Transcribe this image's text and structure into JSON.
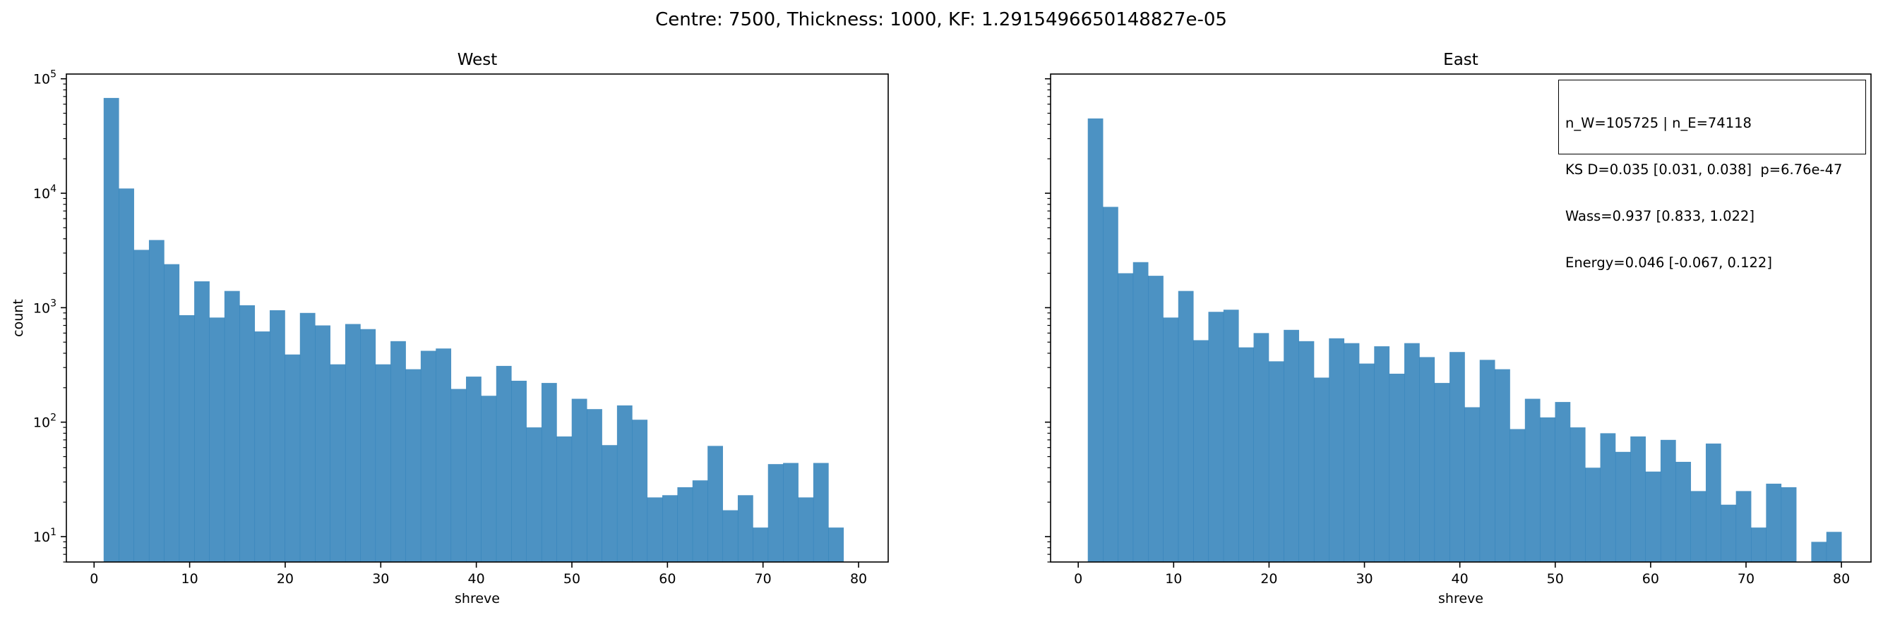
{
  "suptitle": "Centre: 7500, Thickness: 1000, KF: 1.2915496650148827e-05",
  "bar_color": "#1f77b4",
  "chart_data": [
    {
      "type": "bar",
      "title": "West",
      "xlabel": "shreve",
      "ylabel": "count",
      "yscale": "log",
      "xlim": [
        -2.9,
        83.1
      ],
      "ylim": [
        6,
        110000
      ],
      "xticks": [
        0,
        10,
        20,
        30,
        40,
        50,
        60,
        70,
        80
      ],
      "yticks": [
        10,
        100,
        1000,
        10000,
        100000
      ],
      "bin_start": 1,
      "bin_width": 1.58,
      "values": [
        68000,
        11000,
        3200,
        3900,
        2400,
        860,
        1700,
        820,
        1400,
        1050,
        620,
        950,
        390,
        900,
        700,
        320,
        720,
        650,
        320,
        510,
        290,
        420,
        440,
        195,
        250,
        170,
        310,
        230,
        90,
        220,
        75,
        160,
        130,
        63,
        140,
        105,
        22,
        23,
        27,
        31,
        62,
        17,
        23,
        12,
        43,
        44,
        22,
        44,
        12,
        0
      ]
    },
    {
      "type": "bar",
      "title": "East",
      "xlabel": "shreve",
      "ylabel": "",
      "yscale": "log",
      "xlim": [
        -2.9,
        83.1
      ],
      "ylim": [
        6,
        110000
      ],
      "xticks": [
        0,
        10,
        20,
        30,
        40,
        50,
        60,
        70,
        80
      ],
      "yticks": [
        10,
        100,
        1000,
        10000,
        100000
      ],
      "bin_start": 1,
      "bin_width": 1.58,
      "values": [
        45000,
        7600,
        2000,
        2500,
        1900,
        820,
        1400,
        520,
        920,
        960,
        450,
        600,
        340,
        640,
        510,
        245,
        540,
        490,
        325,
        460,
        265,
        490,
        370,
        220,
        410,
        135,
        350,
        290,
        87,
        160,
        110,
        150,
        90,
        40,
        80,
        55,
        75,
        37,
        70,
        45,
        25,
        65,
        19,
        25,
        12,
        29,
        27,
        0,
        9,
        11
      ]
    }
  ],
  "stats_box": {
    "lines": [
      "n_W=105725 | n_E=74118",
      "KS D=0.035 [0.031, 0.038]  p=6.76e-47",
      "Wass=0.937 [0.833, 1.022]",
      "Energy=0.046 [-0.067, 0.122]"
    ]
  }
}
